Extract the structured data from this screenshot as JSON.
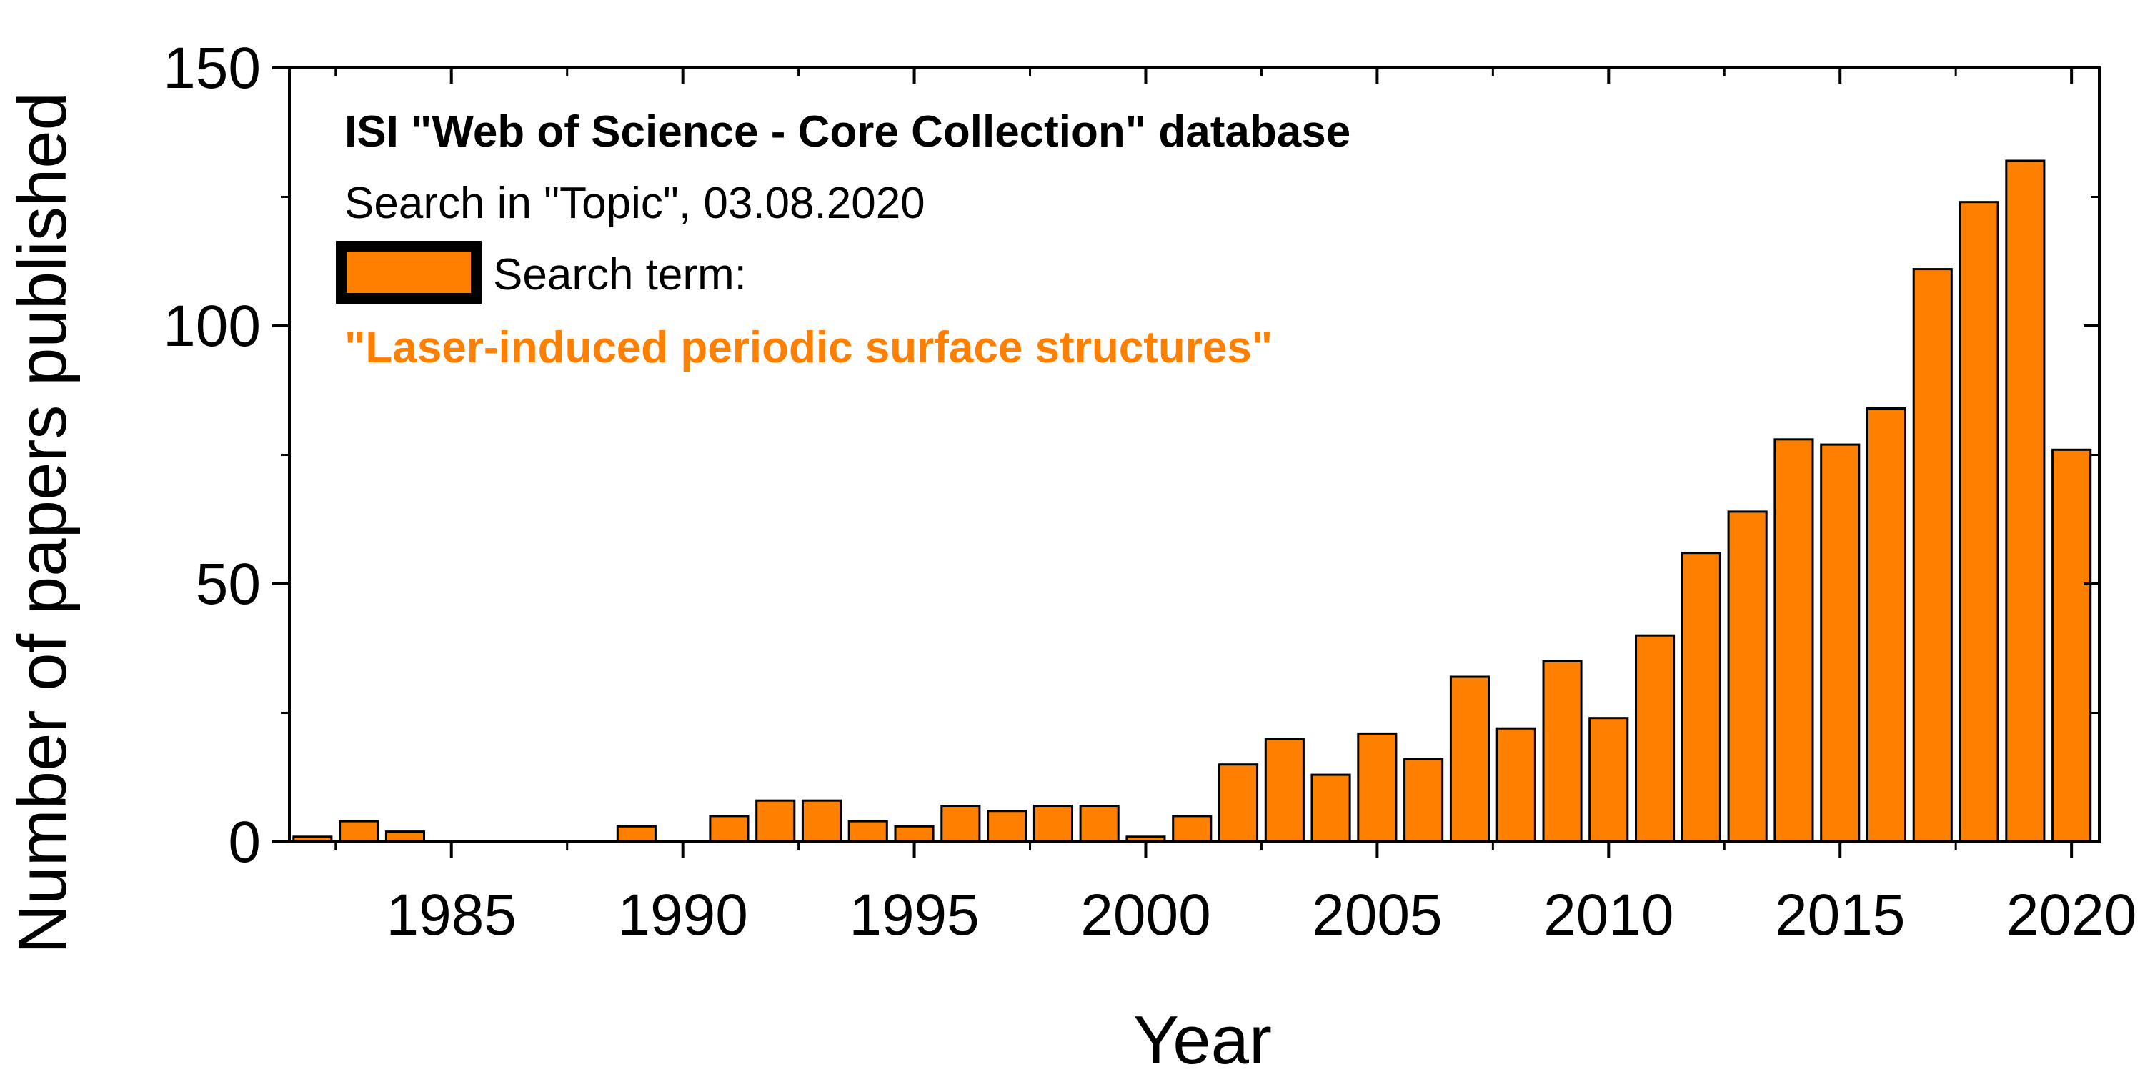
{
  "chart_data": {
    "type": "bar",
    "title": "",
    "xlabel": "Year",
    "ylabel": "Number of papers published",
    "x": [
      1982,
      1983,
      1984,
      1985,
      1986,
      1987,
      1988,
      1989,
      1990,
      1991,
      1992,
      1993,
      1994,
      1995,
      1996,
      1997,
      1998,
      1999,
      2000,
      2001,
      2002,
      2003,
      2004,
      2005,
      2006,
      2007,
      2008,
      2009,
      2010,
      2011,
      2012,
      2013,
      2014,
      2015,
      2016,
      2017,
      2018,
      2019,
      2020
    ],
    "values": [
      1,
      4,
      2,
      0,
      0,
      0,
      0,
      3,
      0,
      5,
      8,
      8,
      4,
      3,
      7,
      6,
      7,
      7,
      1,
      5,
      15,
      20,
      13,
      21,
      16,
      32,
      22,
      35,
      24,
      40,
      56,
      64,
      78,
      77,
      84,
      111,
      124,
      132,
      76
    ],
    "xlim": [
      1981.5,
      2020.6
    ],
    "ylim": [
      0,
      150
    ],
    "xticks": [
      1985,
      1990,
      1995,
      2000,
      2005,
      2010,
      2015,
      2020
    ],
    "xtick_labels": [
      "1985",
      "1990",
      "1995",
      "2000",
      "2005",
      "2010",
      "2015",
      "2020"
    ],
    "yticks": [
      0,
      50,
      100,
      150
    ],
    "ytick_labels": [
      "0",
      "50",
      "100",
      "150"
    ],
    "grid": false,
    "legend": {
      "placement": "top-left",
      "title": "ISI \"Web of Science - Core Collection\" database",
      "subtitle": "Search in \"Topic\", 03.08.2020",
      "entry_label": "Search term:",
      "search_term": "\"Laser-induced periodic surface structures\""
    },
    "colors": {
      "bar_fill": "#ff8000",
      "bar_stroke": "#000000",
      "search_term_text": "#ff8000",
      "axis": "#000000"
    }
  }
}
